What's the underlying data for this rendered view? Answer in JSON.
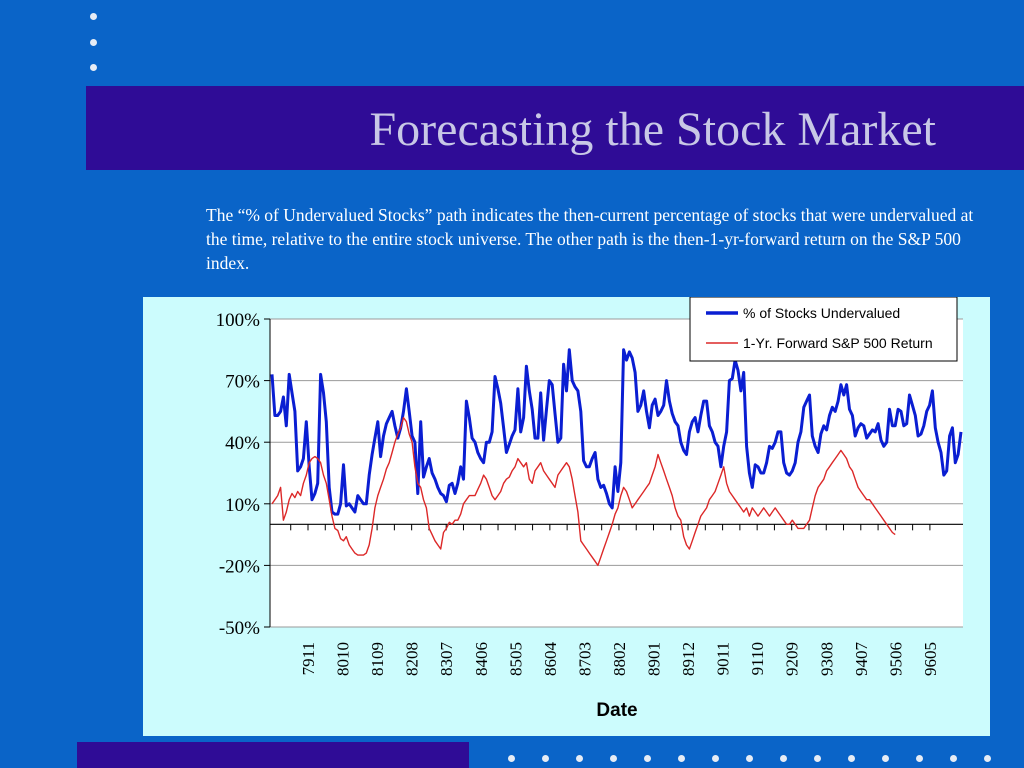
{
  "slide": {
    "title": "Forecasting the Stock Market",
    "description": "The “% of Undervalued Stocks” path indicates the then-current percentage of stocks that were undervalued at the time, relative to the entire stock universe. The other path is the then-1-yr-forward return on the S&P 500 index.",
    "colors": {
      "background": "#0a64c8",
      "title_band": "#2f0c96",
      "title_text": "#c8c8e6",
      "chart_panel": "#ccfcfd",
      "bullet_dots": "#e6ecf5"
    }
  },
  "chart_data": {
    "type": "line",
    "title": "",
    "xlabel": "Date",
    "ylabel": "",
    "ylim": [
      -50,
      100
    ],
    "yticks": [
      100,
      70,
      40,
      10,
      -20,
      -50
    ],
    "ytick_labels": [
      "100%",
      "70%",
      "40%",
      "10%",
      "-20%",
      "-50%"
    ],
    "x_tick_labels": [
      "7911",
      "8010",
      "8109",
      "8208",
      "8307",
      "8406",
      "8505",
      "8604",
      "8703",
      "8802",
      "8901",
      "8912",
      "9011",
      "9110",
      "9209",
      "9308",
      "9407",
      "9506",
      "9605"
    ],
    "x_range": [
      "7904",
      "9612"
    ],
    "grid": "horizontal",
    "legend_position": "top-right",
    "series": [
      {
        "name": "% of Stocks Undervalued",
        "color": "#0a1ed2",
        "values": [
          73,
          53,
          53,
          55,
          62,
          48,
          73,
          64,
          55,
          26,
          28,
          32,
          50,
          28,
          12,
          15,
          20,
          73,
          64,
          50,
          18,
          6,
          5,
          5,
          10,
          29,
          9,
          10,
          8,
          6,
          14,
          12,
          10,
          10,
          24,
          34,
          42,
          50,
          33,
          43,
          49,
          52,
          55,
          48,
          42,
          47,
          55,
          66,
          55,
          43,
          40,
          15,
          50,
          23,
          28,
          32,
          25,
          22,
          18,
          15,
          14,
          11,
          19,
          20,
          15,
          20,
          28,
          22,
          60,
          52,
          42,
          40,
          35,
          32,
          30,
          40,
          40,
          45,
          72,
          66,
          59,
          47,
          35,
          39,
          43,
          46,
          66,
          45,
          52,
          77,
          65,
          56,
          42,
          42,
          64,
          41,
          56,
          70,
          68,
          54,
          40,
          42,
          78,
          65,
          85,
          70,
          67,
          65,
          55,
          31,
          28,
          28,
          32,
          35,
          22,
          18,
          19,
          15,
          10,
          8,
          28,
          16,
          30,
          85,
          80,
          84,
          81,
          74,
          55,
          58,
          65,
          55,
          47,
          58,
          61,
          53,
          55,
          58,
          70,
          60,
          54,
          50,
          48,
          40,
          36,
          34,
          45,
          50,
          52,
          45,
          53,
          60,
          60,
          48,
          45,
          40,
          38,
          28,
          38,
          45,
          70,
          71,
          80,
          75,
          65,
          74,
          38,
          25,
          18,
          29,
          28,
          25,
          25,
          30,
          38,
          37,
          40,
          45,
          45,
          30,
          25,
          24,
          26,
          30,
          40,
          45,
          57,
          60,
          63,
          43,
          38,
          35,
          44,
          48,
          46,
          53,
          57,
          55,
          60,
          68,
          63,
          68,
          56,
          53,
          43,
          47,
          49,
          48,
          42,
          44,
          46,
          45,
          49,
          41,
          38,
          40,
          56,
          48,
          48,
          56,
          55,
          48,
          49,
          63,
          58,
          53,
          43,
          44,
          48,
          55,
          58,
          65,
          47,
          40,
          35,
          24,
          26,
          43,
          47,
          30,
          34,
          45
        ]
      },
      {
        "name": "1-Yr. Forward S&P 500 Return",
        "color": "#dc2828",
        "values": [
          10,
          12,
          14,
          18,
          2,
          6,
          12,
          15,
          13,
          16,
          14,
          20,
          24,
          30,
          32,
          33,
          32,
          30,
          24,
          20,
          12,
          4,
          -2,
          -3,
          -7,
          -8,
          -6,
          -10,
          -12,
          -14,
          -15,
          -15,
          -15,
          -14,
          -10,
          -2,
          8,
          14,
          18,
          22,
          27,
          30,
          35,
          40,
          44,
          47,
          52,
          50,
          44,
          40,
          28,
          20,
          18,
          12,
          8,
          -2,
          -5,
          -8,
          -10,
          -12,
          -4,
          -2,
          1,
          0,
          2,
          2,
          5,
          10,
          12,
          14,
          14,
          14,
          17,
          20,
          24,
          22,
          18,
          14,
          12,
          14,
          16,
          20,
          22,
          23,
          26,
          28,
          32,
          30,
          28,
          30,
          22,
          20,
          26,
          28,
          30,
          26,
          24,
          22,
          20,
          18,
          24,
          26,
          28,
          30,
          28,
          22,
          14,
          6,
          -8,
          -10,
          -12,
          -14,
          -16,
          -18,
          -20,
          -16,
          -12,
          -8,
          -4,
          0,
          5,
          8,
          14,
          18,
          16,
          12,
          8,
          10,
          12,
          14,
          16,
          18,
          20,
          24,
          28,
          34,
          30,
          26,
          22,
          18,
          14,
          8,
          4,
          2,
          -6,
          -10,
          -12,
          -8,
          -4,
          0,
          4,
          6,
          8,
          12,
          14,
          16,
          20,
          24,
          28,
          20,
          16,
          14,
          12,
          10,
          8,
          6,
          8,
          4,
          8,
          6,
          4,
          6,
          8,
          6,
          4,
          6,
          8,
          6,
          4,
          2,
          0,
          0,
          2,
          0,
          -2,
          -2,
          -2,
          0,
          2,
          8,
          14,
          18,
          20,
          22,
          26,
          28,
          30,
          32,
          34,
          36,
          34,
          32,
          28,
          26,
          22,
          18,
          16,
          14,
          12,
          12,
          10,
          8,
          6,
          4,
          2,
          0,
          -2,
          -4,
          -5
        ]
      }
    ]
  }
}
